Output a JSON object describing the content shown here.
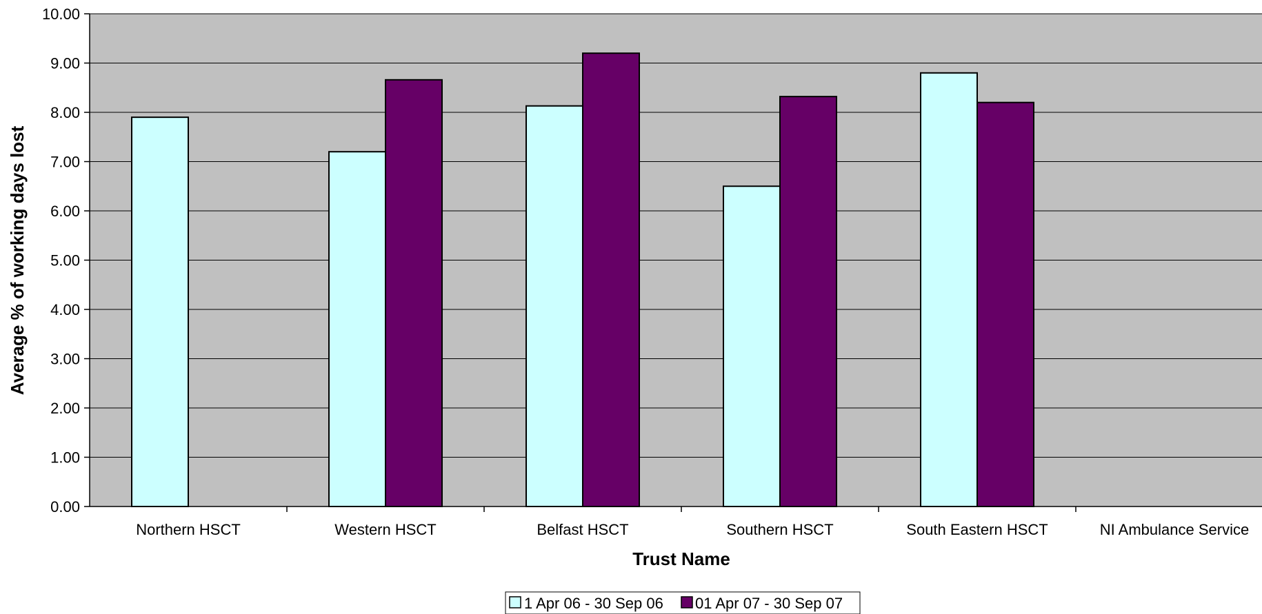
{
  "chart_data": {
    "type": "bar",
    "title": "",
    "xlabel": "Trust Name",
    "ylabel": "Average % of working days lost",
    "ylim": [
      0,
      10
    ],
    "yticks": [
      "0.00",
      "1.00",
      "2.00",
      "3.00",
      "4.00",
      "5.00",
      "6.00",
      "7.00",
      "8.00",
      "9.00",
      "10.00"
    ],
    "grid": true,
    "legend_position": "bottom",
    "categories": [
      "Northern HSCT",
      "Western HSCT",
      "Belfast HSCT",
      "Southern HSCT",
      "South Eastern HSCT",
      "NI Ambulance Service"
    ],
    "series": [
      {
        "name": "1 Apr 06 - 30 Sep 06",
        "color": "#ccffff",
        "values": [
          7.9,
          7.2,
          8.13,
          6.5,
          8.8,
          null
        ]
      },
      {
        "name": "01 Apr 07 - 30 Sep 07",
        "color": "#660066",
        "values": [
          null,
          8.66,
          9.2,
          8.32,
          8.2,
          null
        ]
      }
    ],
    "plot_background": "#c0c0c0"
  }
}
